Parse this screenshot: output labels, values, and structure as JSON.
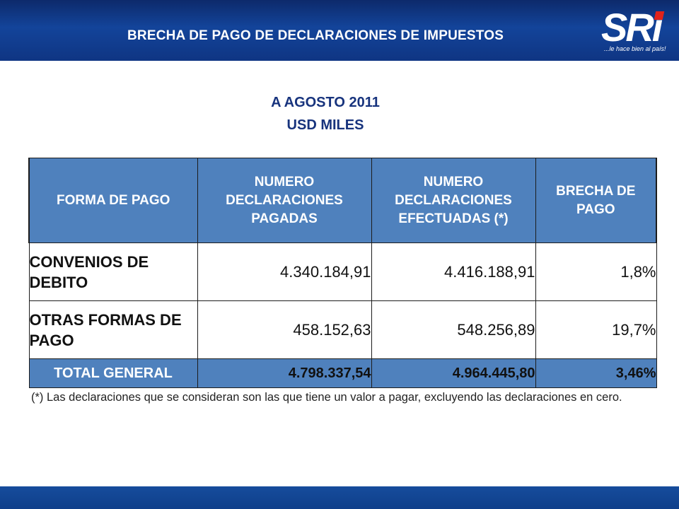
{
  "header": {
    "title": "BRECHA DE PAGO DE DECLARACIONES DE IMPUESTOS",
    "logo_text": "SRi",
    "logo_tagline": "...le hace bien al país!",
    "colors": {
      "bar": "#13449a",
      "logo_accent": "#e2231a"
    }
  },
  "subtitle": {
    "line1": "A AGOSTO 2011",
    "line2": "USD MILES"
  },
  "table": {
    "columns": [
      "FORMA DE PAGO",
      "NUMERO DECLARACIONES PAGADAS",
      "NUMERO DECLARACIONES EFECTUADAS (*)",
      "BRECHA DE PAGO"
    ],
    "rows": [
      {
        "forma": "CONVENIOS DE DEBITO",
        "pagadas": "4.340.184,91",
        "efectuadas": "4.416.188,91",
        "brecha": "1,8%"
      },
      {
        "forma": "OTRAS FORMAS DE PAGO",
        "pagadas": "458.152,63",
        "efectuadas": "548.256,89",
        "brecha": "19,7%"
      }
    ],
    "total": {
      "forma": "TOTAL GENERAL",
      "pagadas": "4.798.337,54",
      "efectuadas": "4.964.445,80",
      "brecha": "3,46%"
    },
    "colors": {
      "header_fill": "#4f81bd"
    }
  },
  "note": "(*) Las declaraciones que se consideran son las que tiene un valor a pagar, excluyendo las declaraciones en cero."
}
